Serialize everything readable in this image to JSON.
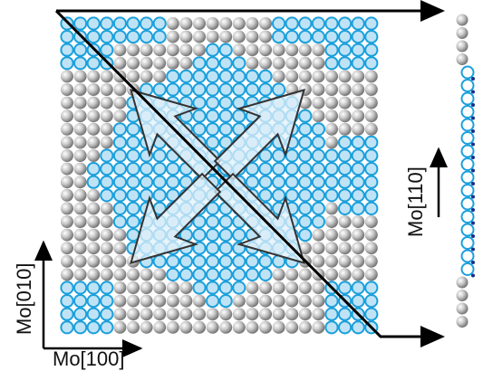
{
  "labels": {
    "x_axis": "Mo[100]",
    "y_axis": "Mo[010]",
    "side_axis": "Mo[110]"
  }
}
